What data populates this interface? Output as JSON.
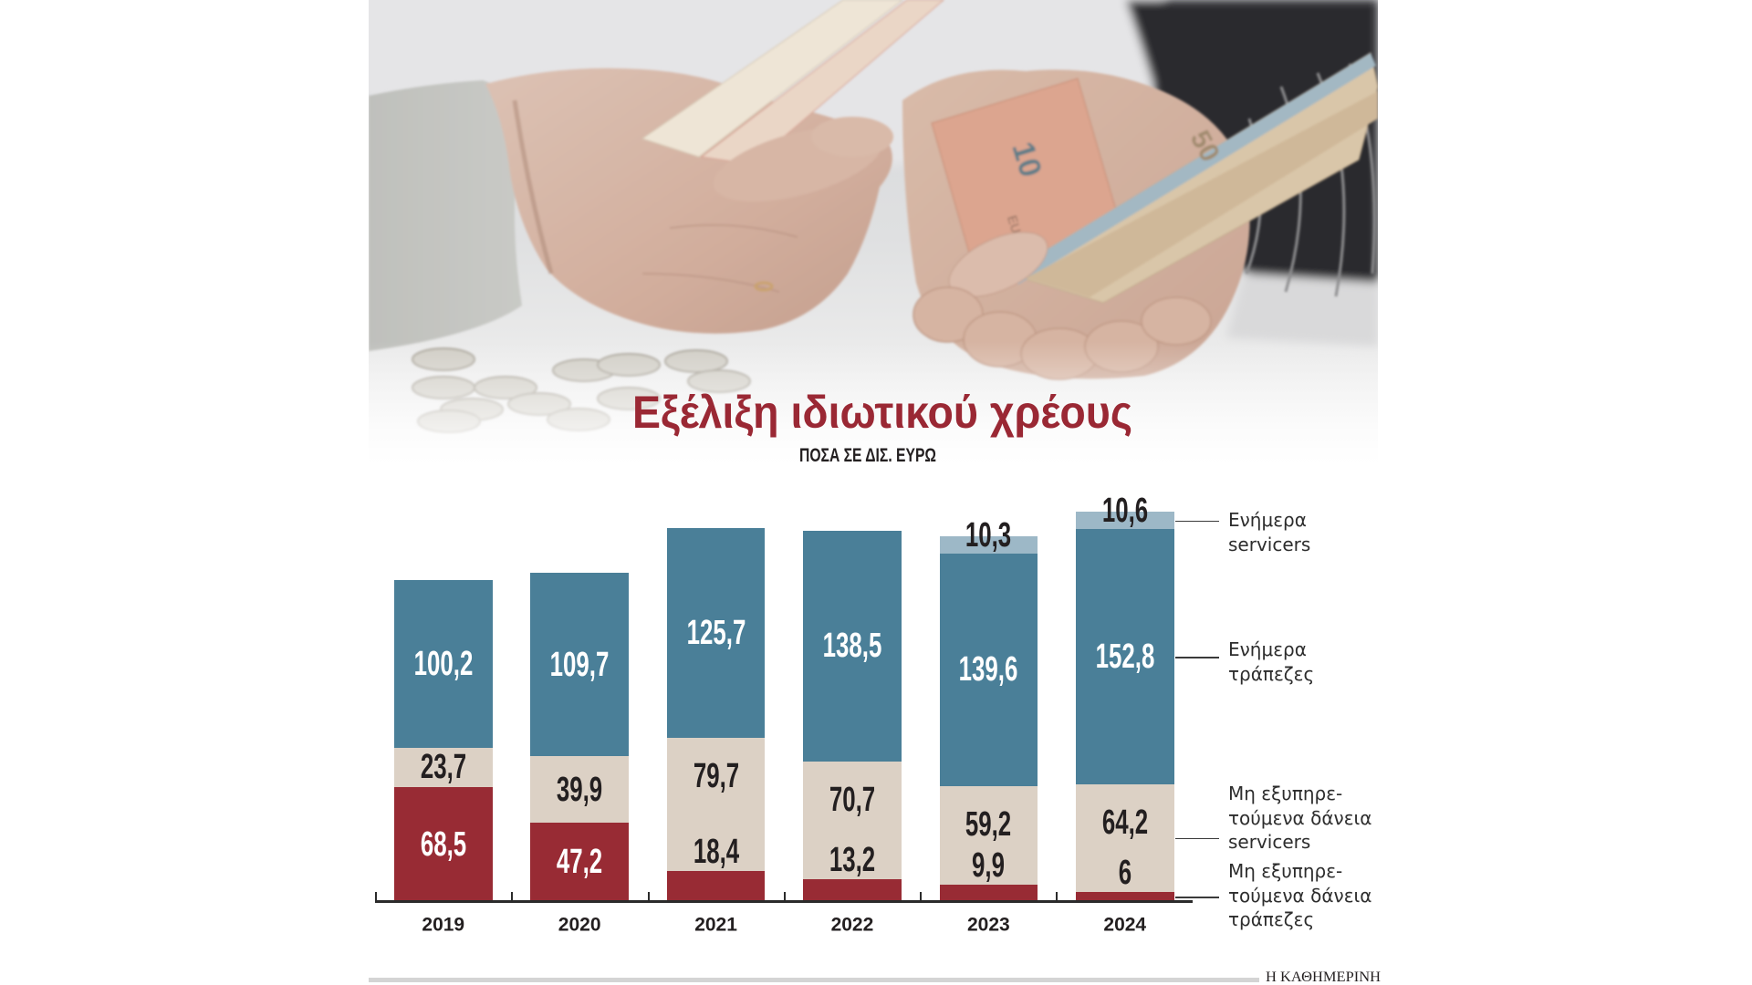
{
  "chart_data": {
    "type": "bar",
    "stacked": true,
    "title": "Εξέλιξη ιδιωτικού χρέους",
    "subtitle": "ΠΟΣΑ ΣΕ ΔΙΣ. ΕΥΡΩ",
    "xlabel": "",
    "ylabel": "ΠΟΣΑ ΣΕ ΔΙΣ. ΕΥΡΩ",
    "categories": [
      "2019",
      "2020",
      "2021",
      "2022",
      "2023",
      "2024"
    ],
    "series": [
      {
        "name": "Μη εξυπηρετούμενα δάνεια τράπεζες",
        "color": "#982b34",
        "values": [
          68.5,
          47.2,
          18.4,
          13.2,
          9.9,
          6
        ],
        "labels": [
          "68,5",
          "47,2",
          "18,4",
          "13,2",
          "9,9",
          "6"
        ]
      },
      {
        "name": "Μη εξυπηρετούμενα δάνεια servicers",
        "color": "#dcd1c5",
        "values": [
          23.7,
          39.9,
          79.7,
          70.7,
          59.2,
          64.2
        ],
        "labels": [
          "23,7",
          "39,9",
          "79,7",
          "70,7",
          "59,2",
          "64,2"
        ]
      },
      {
        "name": "Ενήμερα τράπεζες",
        "color": "#4a7f98",
        "values": [
          100.2,
          109.7,
          125.7,
          138.5,
          139.6,
          152.8
        ],
        "labels": [
          "100,2",
          "109,7",
          "125,7",
          "138,5",
          "139,6",
          "152,8"
        ]
      },
      {
        "name": "Ενήμερα servicers",
        "color": "#9db8c7",
        "values": [
          null,
          null,
          null,
          null,
          10.3,
          10.6
        ],
        "labels": [
          null,
          null,
          null,
          null,
          "10,3",
          "10,6"
        ]
      }
    ],
    "grid": false,
    "legend_position": "right (direct labels with leader lines)",
    "ylim": [
      0,
      240
    ]
  },
  "legend": [
    {
      "series": 3,
      "lines": [
        "Ενήμερα",
        "servicers"
      ]
    },
    {
      "series": 2,
      "lines": [
        "Ενήμερα",
        "τράπεζες"
      ]
    },
    {
      "series": 1,
      "lines": [
        "Μη εξυπηρε-",
        "τούμενα δάνεια",
        "servicers"
      ]
    },
    {
      "series": 0,
      "lines": [
        "Μη εξυπηρε-",
        "τούμενα δάνεια",
        "τράπεζες"
      ]
    }
  ],
  "photo": {
    "banknote_values": [
      "10",
      "50"
    ],
    "banknote_text": "EURO"
  },
  "footer": {
    "source": "Η ΚΑΘΗΜΕΡΙΝΗ"
  },
  "colors": {
    "title": "#9a2834",
    "text_dark": "#231f20",
    "text_light": "#ffffff",
    "axis": "#2b2b2b",
    "rule": "#d4d4d4"
  }
}
